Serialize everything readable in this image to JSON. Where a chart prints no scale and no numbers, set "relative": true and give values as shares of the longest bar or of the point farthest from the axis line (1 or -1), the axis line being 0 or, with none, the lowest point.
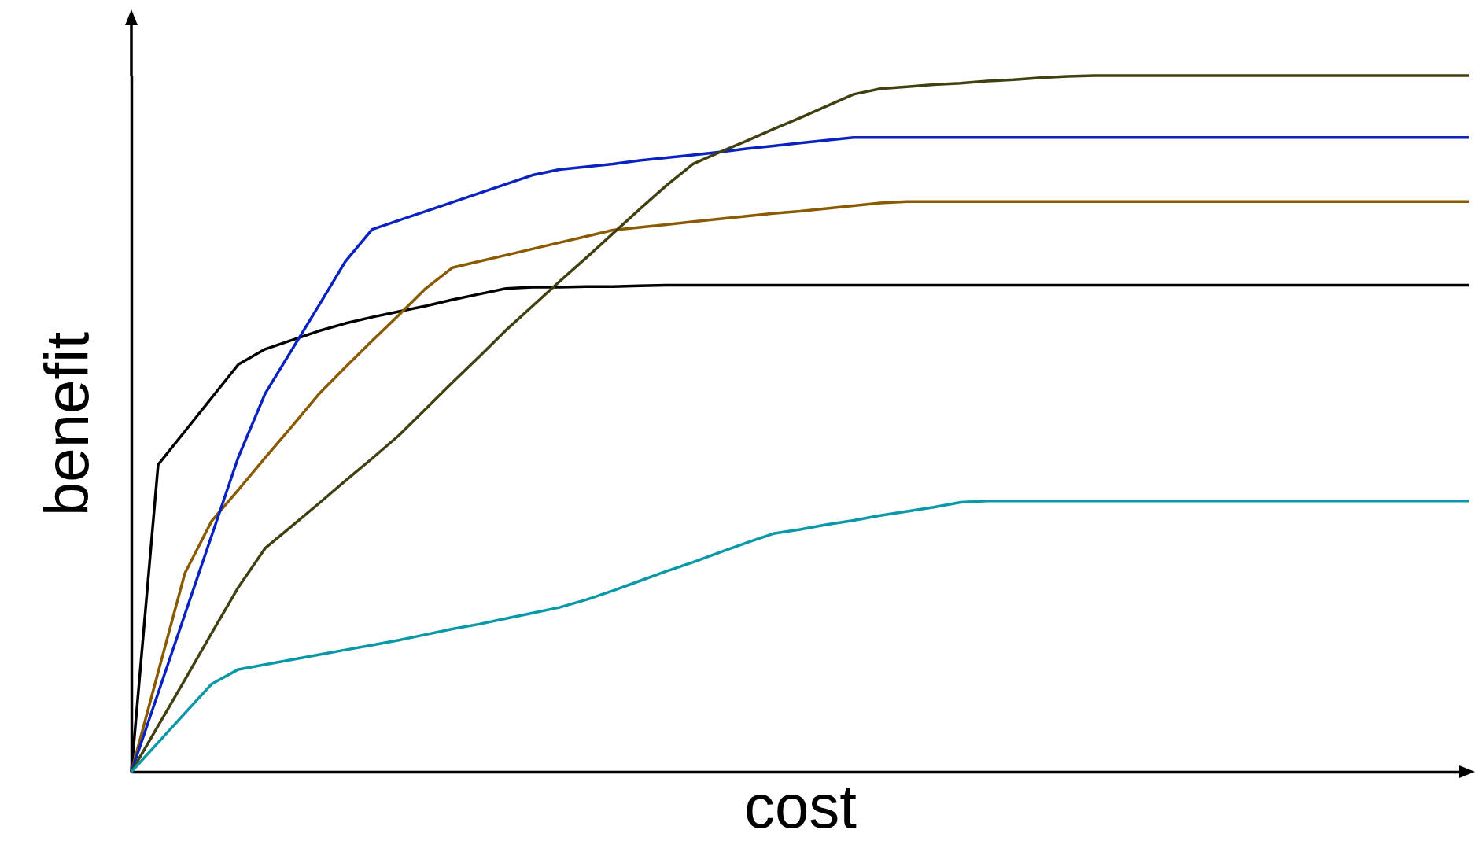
{
  "chart_data": {
    "type": "line",
    "relative": true,
    "xlabel": "cost",
    "ylabel": "benefit",
    "grid": false,
    "legend": false,
    "line_style": "solid",
    "marker": "none",
    "tick_labels": false,
    "categories": [
      null,
      null,
      null,
      null,
      null,
      null,
      null,
      null,
      null,
      null,
      null,
      null,
      null,
      null,
      null,
      null,
      null,
      null,
      null,
      null,
      null,
      null,
      null,
      null,
      null,
      null,
      null,
      null,
      null,
      null,
      null,
      null,
      null,
      null,
      null,
      null,
      null,
      null,
      null,
      null,
      null,
      null,
      null,
      null,
      null,
      null,
      null,
      null,
      null,
      null,
      null
    ],
    "series": [
      {
        "color": "#000000",
        "values": [
          0,
          0.441,
          0.489,
          0.537,
          0.585,
          0.607,
          0.62,
          0.633,
          0.644,
          0.653,
          0.661,
          0.669,
          0.678,
          0.686,
          0.694,
          0.696,
          0.696,
          0.697,
          0.697,
          0.698,
          0.699,
          0.699,
          0.699,
          0.699,
          0.699,
          0.699,
          0.699,
          0.699,
          0.699,
          0.699,
          0.699,
          0.699,
          0.699,
          0.699,
          0.699,
          0.699,
          0.699,
          0.699,
          0.699,
          0.699,
          0.699,
          0.699,
          0.699,
          0.699,
          0.699,
          0.699,
          0.699,
          0.699,
          0.699,
          0.699,
          0.699
        ]
      },
      {
        "color": "#8a5a00",
        "values": [
          0,
          0.143,
          0.285,
          0.36,
          0.405,
          0.451,
          0.496,
          0.542,
          0.581,
          0.619,
          0.656,
          0.694,
          0.724,
          0.733,
          0.742,
          0.751,
          0.76,
          0.769,
          0.778,
          0.782,
          0.786,
          0.79,
          0.794,
          0.798,
          0.802,
          0.805,
          0.809,
          0.813,
          0.817,
          0.819,
          0.819,
          0.819,
          0.819,
          0.819,
          0.819,
          0.819,
          0.819,
          0.819,
          0.819,
          0.819,
          0.819,
          0.819,
          0.819,
          0.819,
          0.819,
          0.819,
          0.819,
          0.819,
          0.819,
          0.819,
          0.819
        ]
      },
      {
        "color": "#0a22c0",
        "values": [
          0,
          0.113,
          0.226,
          0.339,
          0.452,
          0.543,
          0.606,
          0.669,
          0.733,
          0.779,
          0.792,
          0.805,
          0.818,
          0.831,
          0.844,
          0.857,
          0.865,
          0.869,
          0.873,
          0.878,
          0.882,
          0.886,
          0.89,
          0.895,
          0.899,
          0.903,
          0.907,
          0.911,
          0.911,
          0.911,
          0.911,
          0.911,
          0.911,
          0.911,
          0.911,
          0.911,
          0.911,
          0.911,
          0.911,
          0.911,
          0.911,
          0.911,
          0.911,
          0.911,
          0.911,
          0.911,
          0.911,
          0.911,
          0.911,
          0.911,
          0.911
        ]
      },
      {
        "color": "#404010",
        "values": [
          0,
          0.066,
          0.132,
          0.199,
          0.265,
          0.321,
          0.353,
          0.385,
          0.418,
          0.45,
          0.483,
          0.521,
          0.559,
          0.596,
          0.634,
          0.669,
          0.704,
          0.738,
          0.773,
          0.808,
          0.842,
          0.873,
          0.89,
          0.906,
          0.923,
          0.939,
          0.956,
          0.973,
          0.981,
          0.984,
          0.987,
          0.989,
          0.992,
          0.994,
          0.997,
          0.999,
          1,
          1,
          1,
          1,
          1,
          1,
          1,
          1,
          1,
          1,
          1,
          1,
          1,
          1,
          1
        ]
      },
      {
        "color": "#0898a8",
        "values": [
          0,
          0.042,
          0.084,
          0.126,
          0.147,
          0.154,
          0.161,
          0.168,
          0.175,
          0.182,
          0.189,
          0.197,
          0.205,
          0.212,
          0.22,
          0.228,
          0.236,
          0.247,
          0.26,
          0.274,
          0.288,
          0.301,
          0.315,
          0.329,
          0.342,
          0.348,
          0.355,
          0.361,
          0.368,
          0.374,
          0.38,
          0.387,
          0.389,
          0.389,
          0.389,
          0.389,
          0.389,
          0.389,
          0.389,
          0.389,
          0.389,
          0.389,
          0.389,
          0.389,
          0.389,
          0.389,
          0.389,
          0.389,
          0.389,
          0.389,
          0.389
        ]
      }
    ]
  }
}
